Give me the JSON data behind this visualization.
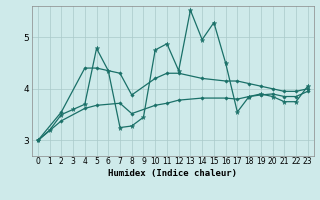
{
  "title": "",
  "xlabel": "Humidex (Indice chaleur)",
  "ylabel": "",
  "bg_color": "#ceeaea",
  "grid_color": "#aacaca",
  "line_color": "#1a7068",
  "xlim": [
    -0.5,
    23.5
  ],
  "ylim": [
    2.7,
    5.6
  ],
  "yticks": [
    3,
    4,
    5
  ],
  "xticks": [
    0,
    1,
    2,
    3,
    4,
    5,
    6,
    7,
    8,
    9,
    10,
    11,
    12,
    13,
    14,
    15,
    16,
    17,
    18,
    19,
    20,
    21,
    22,
    23
  ],
  "series1_x": [
    0,
    1,
    2,
    3,
    4,
    5,
    6,
    7,
    8,
    9,
    10,
    11,
    12,
    13,
    14,
    15,
    16,
    17,
    18,
    19,
    20,
    21,
    22,
    23
  ],
  "series1_y": [
    3.0,
    3.2,
    3.5,
    3.6,
    3.7,
    4.78,
    4.35,
    3.25,
    3.28,
    3.45,
    4.75,
    4.87,
    4.35,
    5.52,
    4.95,
    5.28,
    4.5,
    3.55,
    3.85,
    3.9,
    3.85,
    3.75,
    3.75,
    4.05
  ],
  "series2_x": [
    0,
    2,
    4,
    5,
    7,
    8,
    10,
    11,
    12,
    14,
    16,
    17,
    18,
    19,
    20,
    21,
    22,
    23
  ],
  "series2_y": [
    3.0,
    3.55,
    4.4,
    4.4,
    4.3,
    3.88,
    4.2,
    4.3,
    4.3,
    4.2,
    4.15,
    4.15,
    4.1,
    4.05,
    4.0,
    3.95,
    3.95,
    4.0
  ],
  "series3_x": [
    0,
    2,
    4,
    5,
    7,
    8,
    10,
    11,
    12,
    14,
    16,
    17,
    18,
    19,
    20,
    21,
    22,
    23
  ],
  "series3_y": [
    3.0,
    3.38,
    3.62,
    3.68,
    3.72,
    3.52,
    3.68,
    3.72,
    3.78,
    3.82,
    3.82,
    3.8,
    3.85,
    3.88,
    3.9,
    3.85,
    3.85,
    3.95
  ]
}
